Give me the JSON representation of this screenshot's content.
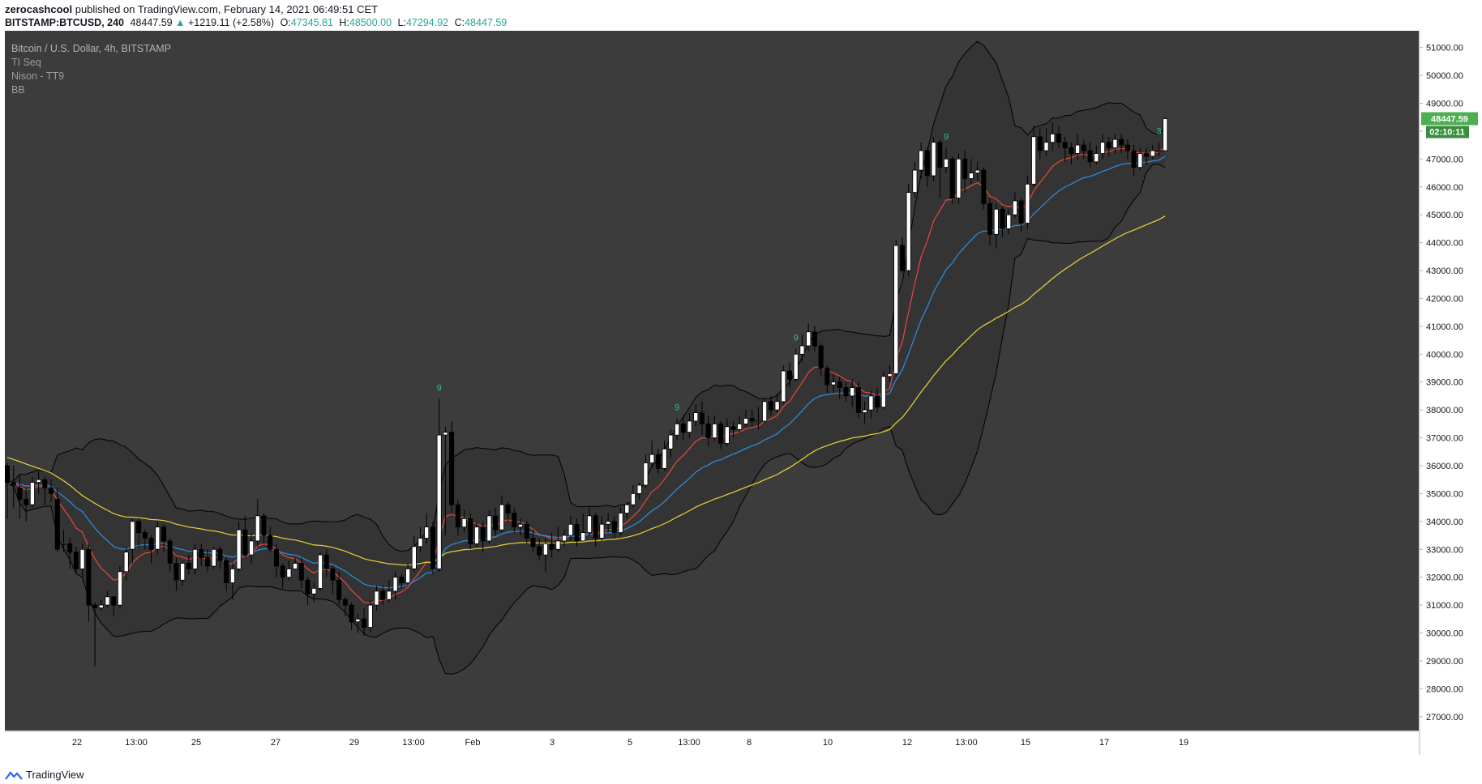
{
  "header": {
    "author": "zerocashcool",
    "published_text": "published on TradingView.com, February 14, 2021 06:49:51 CET",
    "symbol": "BITSTAMP:BTCUSD, 240",
    "last": "48447.59",
    "change": "+1219.11 (+2.58%)",
    "o_label": "O:",
    "o_value": "47345.81",
    "h_label": "H:",
    "h_value": "48500.00",
    "l_label": "L:",
    "l_value": "47294.92",
    "c_label": "C:",
    "c_value": "48447.59"
  },
  "legend": {
    "title": "Bitcoin / U.S. Dollar, 4h, BITSTAMP",
    "indicators": [
      "TI Seq",
      "Nison - TT9",
      "BB"
    ]
  },
  "price_tag": "48447.59",
  "countdown_tag": "02:10:11",
  "footer": {
    "brand": "TradingView"
  },
  "colors": {
    "background": "#3c3c3c",
    "up_candle": "#ffffff",
    "down_candle": "#000000",
    "ema_fast": "#e8483c",
    "ema_mid": "#2e8fe3",
    "ma_slow": "#e8d43a",
    "bb_fill": "#333333",
    "bb_line": "#000000",
    "td9": "#26c281",
    "price_tag": "#4caf50"
  },
  "chart_data": {
    "type": "candlestick",
    "symbol": "BITSTAMP:BTCUSD",
    "timeframe": "4h",
    "y_axis": {
      "min": 27000,
      "max": 51000,
      "ticks": [
        "27000.00",
        "28000.00",
        "29000.00",
        "30000.00",
        "31000.00",
        "32000.00",
        "33000.00",
        "34000.00",
        "35000.00",
        "36000.00",
        "37000.00",
        "38000.00",
        "39000.00",
        "40000.00",
        "41000.00",
        "42000.00",
        "43000.00",
        "44000.00",
        "45000.00",
        "46000.00",
        "47000.00",
        "48000.00",
        "49000.00",
        "50000.00",
        "51000.00"
      ]
    },
    "x_axis": {
      "ticks": [
        "22",
        "13:00",
        "25",
        "27",
        "29",
        "13:00",
        "Feb",
        "3",
        "5",
        "13:00",
        "8",
        "10",
        "12",
        "13:00",
        "15",
        "17",
        "19"
      ]
    },
    "candles": [
      [
        36000,
        35400,
        36100,
        34100
      ],
      [
        35400,
        35300,
        36000,
        34500
      ],
      [
        35200,
        34800,
        35700,
        34100
      ],
      [
        34800,
        34600,
        35200,
        34000
      ],
      [
        34600,
        35400,
        35600,
        34500
      ],
      [
        35400,
        35500,
        35800,
        35000
      ],
      [
        35500,
        35200,
        35600,
        34600
      ],
      [
        35200,
        35000,
        35500,
        34700
      ],
      [
        34800,
        33000,
        35200,
        32900
      ],
      [
        33200,
        33200,
        33700,
        32900
      ],
      [
        33200,
        32900,
        33400,
        32300
      ],
      [
        32900,
        32300,
        33100,
        32100
      ],
      [
        32300,
        33000,
        33200,
        32000
      ],
      [
        33000,
        31000,
        33200,
        30400
      ],
      [
        31000,
        30900,
        31100,
        28800
      ],
      [
        30900,
        31000,
        31200,
        30800
      ],
      [
        31000,
        31300,
        31500,
        30900
      ],
      [
        31300,
        31000,
        31300,
        30600
      ],
      [
        31000,
        32200,
        32400,
        30900
      ],
      [
        32200,
        32900,
        33100,
        31900
      ],
      [
        33000,
        34000,
        34100,
        32500
      ],
      [
        34000,
        33600,
        34100,
        33100
      ],
      [
        33600,
        33400,
        33700,
        33000
      ],
      [
        33400,
        33000,
        33500,
        32500
      ],
      [
        33000,
        33800,
        34000,
        32800
      ],
      [
        33800,
        33300,
        33900,
        32900
      ],
      [
        33300,
        32500,
        33400,
        32200
      ],
      [
        32500,
        31900,
        32700,
        31500
      ],
      [
        31900,
        32500,
        32600,
        31700
      ],
      [
        32500,
        32300,
        32800,
        32100
      ],
      [
        32300,
        33000,
        33200,
        32100
      ],
      [
        33000,
        32700,
        33200,
        32400
      ],
      [
        32700,
        32400,
        33000,
        32200
      ],
      [
        32400,
        33000,
        33100,
        32300
      ],
      [
        33000,
        32600,
        33100,
        32300
      ],
      [
        32600,
        31800,
        32700,
        31500
      ],
      [
        31800,
        32300,
        32500,
        31200
      ],
      [
        32300,
        33700,
        34000,
        32200
      ],
      [
        33700,
        32800,
        34200,
        32700
      ],
      [
        32800,
        33300,
        33600,
        32500
      ],
      [
        33300,
        34200,
        34800,
        33100
      ],
      [
        34200,
        33500,
        34300,
        33200
      ],
      [
        33500,
        33000,
        33800,
        32900
      ],
      [
        33000,
        32400,
        33200,
        32000
      ],
      [
        32400,
        32000,
        32500,
        31600
      ],
      [
        32000,
        32300,
        32600,
        31900
      ],
      [
        32300,
        32500,
        32700,
        32300
      ],
      [
        32500,
        31900,
        32700,
        31600
      ],
      [
        31900,
        31400,
        32000,
        31000
      ],
      [
        31400,
        31600,
        31800,
        31100
      ],
      [
        31600,
        32800,
        32900,
        31500
      ],
      [
        32800,
        32300,
        33000,
        32000
      ],
      [
        32300,
        31900,
        32400,
        31400
      ],
      [
        31900,
        31200,
        32200,
        31000
      ],
      [
        31200,
        31000,
        31300,
        30600
      ],
      [
        31000,
        30400,
        31100,
        30100
      ],
      [
        30400,
        30500,
        30700,
        30000
      ],
      [
        30500,
        30200,
        30900,
        29900
      ],
      [
        30200,
        31000,
        31200,
        30000
      ],
      [
        31000,
        31500,
        31700,
        30800
      ],
      [
        31500,
        31200,
        31700,
        31000
      ],
      [
        31200,
        31500,
        31900,
        31100
      ],
      [
        31500,
        32000,
        32200,
        31200
      ],
      [
        32000,
        31800,
        32100,
        31600
      ],
      [
        31800,
        32300,
        32500,
        31700
      ],
      [
        32300,
        33100,
        33500,
        32200
      ],
      [
        33100,
        33400,
        33800,
        32900
      ],
      [
        33400,
        33800,
        34300,
        33200
      ],
      [
        33800,
        32300,
        34000,
        32100
      ],
      [
        32300,
        37100,
        38400,
        32200
      ],
      [
        37100,
        37200,
        37400,
        33500
      ],
      [
        37200,
        34600,
        37600,
        34300
      ],
      [
        34600,
        33800,
        34800,
        33500
      ],
      [
        33800,
        34100,
        34400,
        33600
      ],
      [
        34100,
        33200,
        34300,
        33000
      ],
      [
        33200,
        33800,
        34000,
        33100
      ],
      [
        33800,
        33300,
        34000,
        32900
      ],
      [
        33300,
        34200,
        34400,
        33200
      ],
      [
        34200,
        33700,
        34500,
        33500
      ],
      [
        33700,
        34600,
        34900,
        33600
      ],
      [
        34600,
        34300,
        34700,
        34000
      ],
      [
        34300,
        33800,
        34500,
        33600
      ],
      [
        33800,
        33900,
        34100,
        33500
      ],
      [
        33900,
        33400,
        34000,
        33200
      ],
      [
        33400,
        33100,
        33700,
        32900
      ],
      [
        33100,
        32800,
        33400,
        32600
      ],
      [
        32800,
        33200,
        33400,
        32200
      ],
      [
        33200,
        33000,
        33600,
        32700
      ],
      [
        33000,
        33300,
        33800,
        32900
      ],
      [
        33300,
        33500,
        33700,
        33100
      ],
      [
        33500,
        33900,
        34200,
        33300
      ],
      [
        33900,
        33300,
        34100,
        33100
      ],
      [
        33300,
        33600,
        34300,
        33300
      ],
      [
        33600,
        34200,
        34500,
        33500
      ],
      [
        34200,
        33400,
        34300,
        33100
      ],
      [
        33400,
        33900,
        34200,
        33300
      ],
      [
        33900,
        34000,
        34300,
        33600
      ],
      [
        34000,
        33600,
        34200,
        33400
      ],
      [
        33600,
        34300,
        34500,
        33500
      ],
      [
        34300,
        34600,
        34700,
        34100
      ],
      [
        34600,
        35000,
        35300,
        34500
      ],
      [
        35000,
        35300,
        35400,
        34800
      ],
      [
        35300,
        36100,
        36400,
        35200
      ],
      [
        36100,
        36400,
        36900,
        35900
      ],
      [
        36400,
        35900,
        36600,
        35700
      ],
      [
        35900,
        36600,
        36900,
        35800
      ],
      [
        36600,
        37100,
        37300,
        36300
      ],
      [
        37100,
        37500,
        37700,
        36900
      ],
      [
        37500,
        37200,
        37800,
        36900
      ],
      [
        37200,
        37600,
        37900,
        37000
      ],
      [
        37600,
        37900,
        38200,
        37400
      ],
      [
        37900,
        37500,
        38300,
        37100
      ],
      [
        37500,
        37000,
        37800,
        36700
      ],
      [
        37000,
        37500,
        37800,
        36900
      ],
      [
        37500,
        36800,
        37600,
        36600
      ],
      [
        36800,
        37400,
        37700,
        36700
      ],
      [
        37400,
        37300,
        37600,
        37000
      ],
      [
        37300,
        37500,
        37800,
        37200
      ],
      [
        37500,
        37700,
        38000,
        37400
      ],
      [
        37700,
        37600,
        38000,
        37400
      ],
      [
        37600,
        37600,
        38100,
        37300
      ],
      [
        37600,
        38300,
        38400,
        37500
      ],
      [
        38300,
        38000,
        38500,
        37800
      ],
      [
        38000,
        38300,
        38600,
        37900
      ],
      [
        38300,
        39400,
        39600,
        38200
      ],
      [
        39400,
        39100,
        39700,
        38800
      ],
      [
        39100,
        40000,
        40200,
        39000
      ],
      [
        40000,
        40300,
        40700,
        39700
      ],
      [
        40300,
        40800,
        41100,
        40100
      ],
      [
        40800,
        40300,
        41000,
        40100
      ],
      [
        40300,
        39500,
        40400,
        39200
      ],
      [
        39500,
        38900,
        39600,
        38600
      ],
      [
        38900,
        39000,
        39300,
        38600
      ],
      [
        39000,
        38800,
        39200,
        38400
      ],
      [
        38800,
        38500,
        39000,
        38300
      ],
      [
        38500,
        38800,
        39100,
        38100
      ],
      [
        38800,
        37900,
        39000,
        37700
      ],
      [
        37900,
        38000,
        38300,
        37500
      ],
      [
        38000,
        38500,
        38700,
        37700
      ],
      [
        38500,
        38100,
        38800,
        37900
      ],
      [
        38100,
        39200,
        39400,
        38000
      ],
      [
        39200,
        39300,
        39600,
        39000
      ],
      [
        39300,
        43900,
        44100,
        39200
      ],
      [
        43900,
        43000,
        44200,
        42900
      ],
      [
        43000,
        45800,
        46100,
        42800
      ],
      [
        45800,
        46600,
        46900,
        45600
      ],
      [
        46600,
        47300,
        47600,
        46300
      ],
      [
        47300,
        46400,
        47400,
        46000
      ],
      [
        46400,
        47600,
        47800,
        46200
      ],
      [
        47600,
        46700,
        47700,
        45600
      ],
      [
        46700,
        47000,
        47400,
        46500
      ],
      [
        47000,
        45600,
        47100,
        45400
      ],
      [
        45600,
        47000,
        47200,
        45400
      ],
      [
        47000,
        46300,
        47300,
        45800
      ],
      [
        46300,
        46500,
        47000,
        46100
      ],
      [
        46500,
        46600,
        46900,
        46200
      ],
      [
        46600,
        45400,
        46700,
        45200
      ],
      [
        45400,
        44300,
        45600,
        43900
      ],
      [
        44300,
        45200,
        45400,
        43800
      ],
      [
        45200,
        44500,
        45300,
        44200
      ],
      [
        44500,
        45000,
        45200,
        44300
      ],
      [
        45000,
        45500,
        45800,
        44900
      ],
      [
        45500,
        44700,
        45600,
        44400
      ],
      [
        44700,
        46100,
        46400,
        44500
      ],
      [
        46100,
        47800,
        48200,
        46000
      ],
      [
        47800,
        47300,
        48100,
        47000
      ],
      [
        47300,
        47600,
        48100,
        47100
      ],
      [
        47600,
        47900,
        48300,
        47300
      ],
      [
        47900,
        47600,
        48200,
        47400
      ],
      [
        47600,
        47400,
        47800,
        46900
      ],
      [
        47400,
        47200,
        47600,
        46800
      ],
      [
        47200,
        47500,
        47900,
        47000
      ],
      [
        47500,
        47300,
        47700,
        47000
      ],
      [
        47300,
        46900,
        47600,
        46700
      ],
      [
        46900,
        47200,
        47500,
        46800
      ],
      [
        47200,
        47600,
        47900,
        47000
      ],
      [
        47600,
        47400,
        47800,
        47100
      ],
      [
        47400,
        47700,
        47900,
        47200
      ],
      [
        47700,
        47500,
        47900,
        47200
      ],
      [
        47500,
        47300,
        47700,
        47000
      ],
      [
        47300,
        46700,
        47500,
        46400
      ],
      [
        46700,
        47200,
        47400,
        46600
      ],
      [
        47200,
        47100,
        47400,
        46800
      ],
      [
        47100,
        47300,
        47500,
        47000
      ],
      [
        47300,
        47300,
        47600,
        47100
      ],
      [
        47300,
        48447.59,
        48500,
        47294.92
      ]
    ],
    "td9_labels": [
      {
        "candle": 69,
        "text": "9"
      },
      {
        "candle": 107,
        "text": "9"
      },
      {
        "candle": 126,
        "text": "9"
      },
      {
        "candle": 150,
        "text": "9"
      },
      {
        "candle": 184,
        "text": "3"
      }
    ],
    "indicators": [
      "EMA fast (red)",
      "EMA mid (blue)",
      "MA slow (yellow)",
      "Bollinger Bands 20,2"
    ]
  }
}
